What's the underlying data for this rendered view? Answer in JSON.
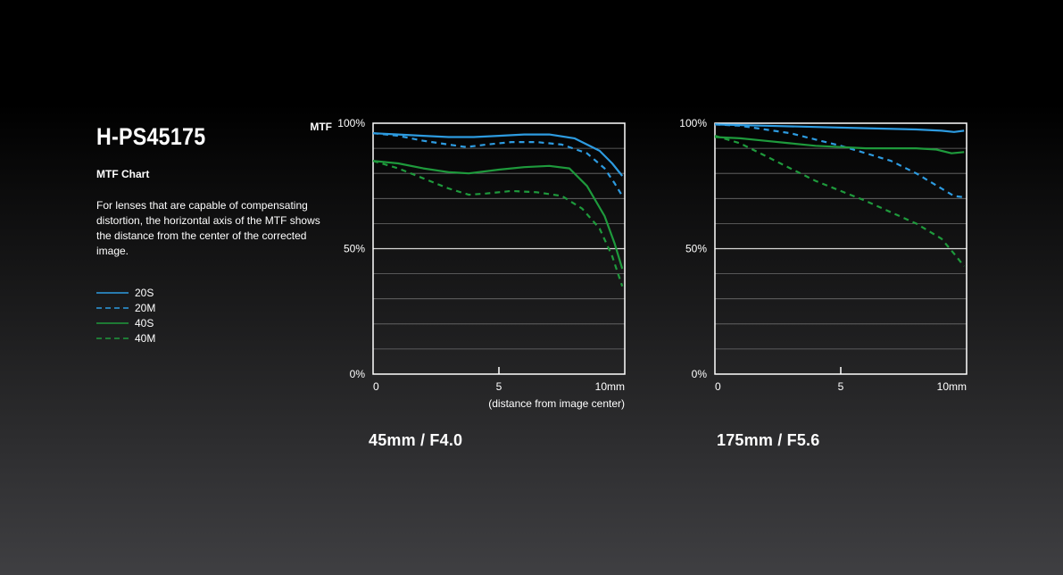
{
  "title": "H-PS45175",
  "subtitle": "MTF Chart",
  "description": "For lenses that are capable of compensating distortion, the horizontal axis of the MTF shows the distance from the center of the corrected image.",
  "legend": [
    {
      "label": "20S",
      "color": "#2d9be0",
      "dash": false
    },
    {
      "label": "20M",
      "color": "#2d9be0",
      "dash": true
    },
    {
      "label": "40S",
      "color": "#1e9a3c",
      "dash": false
    },
    {
      "label": "40M",
      "color": "#1e9a3c",
      "dash": true
    }
  ],
  "chart_data": [
    {
      "type": "line",
      "caption": "45mm / F4.0",
      "ylabel": "MTF",
      "xlabel": "(distance from image center)",
      "x_ticks": [
        "0",
        "5",
        "10mm"
      ],
      "y_ticks": [
        "0%",
        "50%",
        "100%"
      ],
      "xlim": [
        0,
        10
      ],
      "ylim": [
        0,
        100
      ],
      "grid": true,
      "series": [
        {
          "name": "20S",
          "color": "#2d9be0",
          "dash": false,
          "x": [
            0,
            1,
            2,
            3,
            4,
            5,
            6,
            7,
            8,
            9,
            9.5,
            9.9
          ],
          "y": [
            96,
            95.5,
            95,
            94.5,
            94.5,
            95,
            95.5,
            95.5,
            94,
            89,
            84,
            79
          ]
        },
        {
          "name": "20M",
          "color": "#2d9be0",
          "dash": true,
          "x": [
            0,
            1,
            2,
            3,
            3.7,
            4.5,
            5.5,
            6.5,
            7.5,
            8.5,
            9.2,
            9.6,
            9.9
          ],
          "y": [
            96,
            95,
            93,
            91.5,
            90.5,
            91.5,
            92.5,
            92.5,
            91.5,
            88,
            82,
            76,
            71
          ]
        },
        {
          "name": "40S",
          "color": "#1e9a3c",
          "dash": false,
          "x": [
            0,
            1,
            2,
            3,
            3.8,
            5,
            6,
            7,
            7.8,
            8.5,
            9.2,
            9.6,
            9.9
          ],
          "y": [
            85,
            84,
            82,
            80.5,
            80,
            81.5,
            82.5,
            83,
            82,
            75,
            63,
            52,
            42
          ]
        },
        {
          "name": "40M",
          "color": "#1e9a3c",
          "dash": true,
          "x": [
            0,
            1,
            2,
            3,
            3.8,
            4.5,
            5.5,
            6.5,
            7.5,
            8.3,
            9.0,
            9.5,
            9.9
          ],
          "y": [
            85,
            82,
            78,
            74,
            71.5,
            72,
            73,
            72.5,
            71,
            66,
            58,
            47,
            35
          ]
        }
      ]
    },
    {
      "type": "line",
      "caption": "175mm / F5.6",
      "ylabel": "",
      "xlabel": "",
      "x_ticks": [
        "0",
        "5",
        "10mm"
      ],
      "y_ticks": [
        "0%",
        "50%",
        "100%"
      ],
      "xlim": [
        0,
        10
      ],
      "ylim": [
        0,
        100
      ],
      "grid": true,
      "series": [
        {
          "name": "20S",
          "color": "#2d9be0",
          "dash": false,
          "x": [
            0,
            2,
            4,
            6,
            8,
            9,
            9.5,
            9.9
          ],
          "y": [
            99.5,
            99,
            98.5,
            98,
            97.5,
            97,
            96.5,
            97
          ]
        },
        {
          "name": "20M",
          "color": "#2d9be0",
          "dash": true,
          "x": [
            0,
            1,
            2,
            3,
            4,
            5,
            6,
            7,
            8,
            9,
            9.5,
            9.9
          ],
          "y": [
            99.5,
            99,
            97.5,
            96,
            93.5,
            91,
            88,
            85,
            80,
            74,
            71,
            70.5
          ]
        },
        {
          "name": "40S",
          "color": "#1e9a3c",
          "dash": false,
          "x": [
            0,
            1,
            2,
            3,
            4,
            5,
            6,
            7,
            8,
            8.8,
            9.4,
            9.9
          ],
          "y": [
            94.5,
            94,
            93,
            92,
            91,
            90.5,
            90,
            90,
            90,
            89.5,
            88,
            88.5
          ]
        },
        {
          "name": "40M",
          "color": "#1e9a3c",
          "dash": true,
          "x": [
            0,
            1,
            2,
            3,
            4,
            5,
            6,
            7,
            8,
            9,
            9.5,
            9.9
          ],
          "y": [
            95,
            92,
            87,
            82,
            77,
            73,
            69,
            64.5,
            60,
            54,
            48,
            43
          ]
        }
      ]
    }
  ]
}
